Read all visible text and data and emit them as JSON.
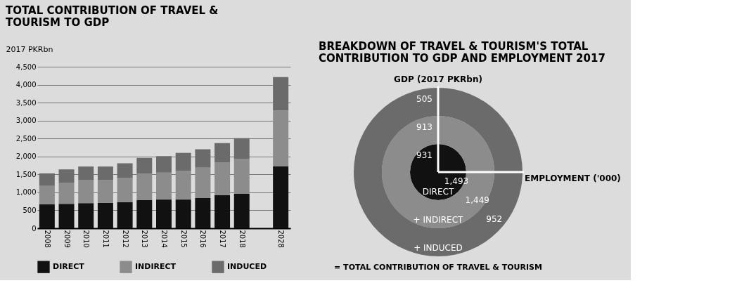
{
  "chart_data": [
    {
      "type": "bar",
      "title": "TOTAL CONTRIBUTION OF TRAVEL & TOURISM TO GDP",
      "ylabel": "2017 PKRbn",
      "stacked": true,
      "grid": "y",
      "legend": "bottom",
      "categories": [
        "2008",
        "2009",
        "2010",
        "2011",
        "2012",
        "2013",
        "2014",
        "2015",
        "2016",
        "2017",
        "2018",
        null,
        "2028"
      ],
      "ylim": [
        0,
        4500
      ],
      "yticks": [
        0,
        500,
        {
          "value": 1000,
          "label": "1,000"
        },
        {
          "value": 1500,
          "label": "1,500"
        },
        {
          "value": 2000,
          "label": "2,000"
        },
        {
          "value": 2500,
          "label": "2,500"
        },
        {
          "value": 3000,
          "label": "3,000"
        },
        {
          "value": 3500,
          "label": "3,500"
        },
        {
          "value": 4000,
          "label": "4,000"
        },
        {
          "value": 4500,
          "label": "4,500"
        }
      ],
      "series": [
        {
          "name": "DIRECT",
          "color": "#111111",
          "values": [
            670,
            680,
            700,
            710,
            730,
            790,
            800,
            800,
            840,
            920,
            960,
            null,
            1720
          ]
        },
        {
          "name": "INDIRECT",
          "color": "#8c8c8c",
          "values": [
            510,
            590,
            650,
            630,
            670,
            730,
            750,
            800,
            860,
            920,
            970,
            null,
            1560
          ]
        },
        {
          "name": "INDUCED",
          "color": "#6b6b6b",
          "values": [
            350,
            370,
            370,
            380,
            410,
            440,
            460,
            500,
            500,
            530,
            580,
            null,
            930
          ]
        }
      ]
    },
    {
      "type": "other",
      "title": "BREAKDOWN OF TRAVEL & TOURISM'S TOTAL CONTRIBUTION TO GDP AND EMPLOYMENT 2017",
      "categories": [
        "GDP (2017 PKRbn)",
        "EMPLOYMENT ('000)"
      ],
      "series": [
        {
          "name": "DIRECT",
          "color": "#111111",
          "values": [
            931,
            1493
          ],
          "value_labels": [
            "931",
            "1,493"
          ]
        },
        {
          "name": "+ INDIRECT",
          "color": "#8c8c8c",
          "values": [
            913,
            1449
          ],
          "value_labels": [
            "913",
            "1,449"
          ]
        },
        {
          "name": "+ INDUCED",
          "color": "#6b6b6b",
          "values": [
            505,
            952
          ],
          "value_labels": [
            "505",
            "952"
          ]
        }
      ],
      "annotations": [
        "= TOTAL CONTRIBUTION OF TRAVEL & TOURISM"
      ]
    }
  ]
}
